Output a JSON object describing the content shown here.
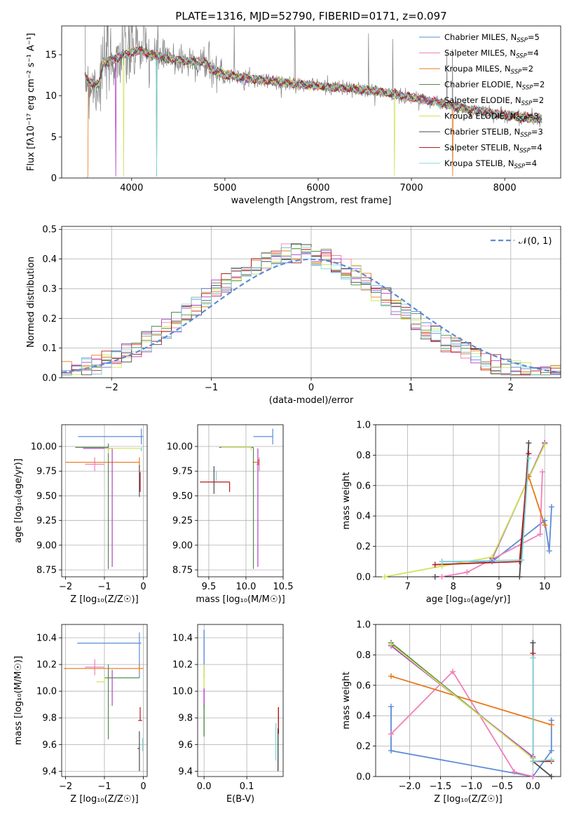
{
  "figure_title": "PLATE=1316, MJD=52790, FIBERID=0171, z=0.097",
  "colors": {
    "chabrier_miles": "#5b8bd8",
    "salpeter_miles": "#ef7fb8",
    "kroupa_miles": "#e7771a",
    "chabrier_elodie": "#548b4c",
    "salpeter_elodie": "#b13fc8",
    "kroupa_elodie": "#cfe35a",
    "chabrier_stelib": "#4a4a4a",
    "salpeter_stelib": "#b51c1c",
    "kroupa_stelib": "#7fd8d9",
    "data": "#808080",
    "normal": "#5b8bd8"
  },
  "chart_data": [
    {
      "id": "spectrum",
      "type": "line",
      "title": "PLATE=1316, MJD=52790, FIBERID=0171, z=0.097",
      "xlabel": "wavelength [Angstrom, rest frame]",
      "ylabel": "Flux [fλ10⁻¹⁷ erg cm⁻² s⁻¹ A⁻¹]",
      "xlim": [
        3250,
        8600
      ],
      "ylim": [
        0,
        18.5
      ],
      "xticks": [
        4000,
        5000,
        6000,
        7000,
        8000
      ],
      "yticks": [
        0,
        5,
        10,
        15
      ],
      "grid": false,
      "legend_position": "top-right",
      "series": [
        {
          "name": "Chabrier MILES, N_SSP=5",
          "color_key": "chabrier_miles"
        },
        {
          "name": "Salpeter MILES, N_SSP=4",
          "color_key": "salpeter_miles"
        },
        {
          "name": "Kroupa MILES, N_SSP=2",
          "color_key": "kroupa_miles"
        },
        {
          "name": "Chabrier ELODIE, N_SSP=2",
          "color_key": "chabrier_elodie"
        },
        {
          "name": "Salpeter ELODIE, N_SSP=2",
          "color_key": "salpeter_elodie"
        },
        {
          "name": "Kroupa ELODIE, N_SSP=3",
          "color_key": "kroupa_elodie"
        },
        {
          "name": "Chabrier STELIB, N_SSP=3",
          "color_key": "chabrier_stelib"
        },
        {
          "name": "Salpeter STELIB, N_SSP=4",
          "color_key": "salpeter_stelib"
        },
        {
          "name": "Kroupa STELIB, N_SSP=4",
          "color_key": "kroupa_stelib"
        }
      ],
      "model_continuum": {
        "x": [
          3500,
          3550,
          3650,
          3700,
          3800,
          3900,
          4000,
          4100,
          4200,
          4300,
          4400,
          4600,
          4800,
          4850,
          5000,
          5200,
          5500,
          5800,
          6000,
          6300,
          6600,
          6900,
          7200,
          7500,
          7800,
          8000,
          8200,
          8400
        ],
        "y": [
          12.3,
          11.6,
          11.3,
          14.0,
          14.3,
          15.0,
          15.2,
          15.6,
          15.0,
          14.8,
          14.5,
          14.2,
          14.0,
          13.2,
          12.6,
          12.2,
          11.8,
          11.4,
          11.2,
          10.9,
          10.6,
          10.0,
          9.4,
          8.6,
          8.0,
          7.6,
          7.4,
          7.2
        ]
      }
    },
    {
      "id": "residuals",
      "type": "step",
      "xlabel": "(data-model)/error",
      "ylabel": "Normed distribution",
      "xlim": [
        -2.5,
        2.5
      ],
      "ylim": [
        0,
        0.51
      ],
      "xticks": [
        -2,
        -1,
        0,
        1,
        2
      ],
      "yticks": [
        0.0,
        0.1,
        0.2,
        0.3,
        0.4,
        0.5
      ],
      "grid": true,
      "legend": "𝒩(0, 1)",
      "legend_position": "top-right",
      "normal_mu": 0,
      "normal_sigma": 1
    },
    {
      "id": "z_age",
      "type": "errorbar",
      "xlabel": "Z [log₁₀(Z/Z☉)]",
      "ylabel": "age  [log₁₀(age/yr)]",
      "xlim": [
        -2.1,
        0.1
      ],
      "ylim": [
        8.68,
        10.22
      ],
      "xticks": [
        -2,
        -1,
        0
      ],
      "yticks": [
        8.75,
        9.0,
        9.25,
        9.5,
        9.75,
        10.0
      ],
      "grid": true,
      "points": [
        {
          "color_key": "chabrier_miles",
          "x": -0.05,
          "xerr": [
            1.63,
            0.05
          ],
          "y": 10.1,
          "yerr": [
            0.08,
            0.08
          ]
        },
        {
          "color_key": "salpeter_miles",
          "x": -1.25,
          "xerr": [
            0.25,
            0.25
          ],
          "y": 9.82,
          "yerr": [
            0.07,
            0.07
          ]
        },
        {
          "color_key": "kroupa_miles",
          "x": -0.1,
          "xerr": [
            1.9,
            0.0
          ],
          "y": 9.84,
          "yerr": [
            0.05,
            0.05
          ]
        },
        {
          "color_key": "chabrier_elodie",
          "x": -0.9,
          "xerr": [
            0.85,
            0.0
          ],
          "y": 9.99,
          "yerr": [
            1.23,
            0.04
          ]
        },
        {
          "color_key": "salpeter_elodie",
          "x": -0.8,
          "xerr": [
            0.75,
            0.0
          ],
          "y": 9.98,
          "yerr": [
            1.2,
            0.0
          ]
        },
        {
          "color_key": "kroupa_elodie",
          "x": -0.9,
          "xerr": [
            0.1,
            0.85
          ],
          "y": 9.98,
          "yerr": [
            0.05,
            0.0
          ]
        },
        {
          "color_key": "chabrier_stelib",
          "x": -0.1,
          "xerr": [
            0.0,
            0.0
          ],
          "y": 9.64,
          "yerr": [
            0.15,
            0.17
          ]
        },
        {
          "color_key": "salpeter_stelib",
          "x": -0.08,
          "xerr": [
            0.0,
            0.0
          ],
          "y": 9.64,
          "yerr": [
            0.1,
            0.1
          ]
        },
        {
          "color_key": "kroupa_stelib",
          "x": -0.05,
          "xerr": [
            0.02,
            0.02
          ],
          "y": 9.97,
          "yerr": [
            0.02,
            0.02
          ]
        }
      ]
    },
    {
      "id": "mass_age",
      "type": "errorbar",
      "xlabel": "mass [log₁₀(M/M☉)]",
      "ylabel": "",
      "xlim": [
        9.35,
        10.5
      ],
      "ylim": [
        8.68,
        10.22
      ],
      "xticks": [
        9.5,
        10.0,
        10.5
      ],
      "yticks": [
        8.75,
        9.0,
        9.25,
        9.5,
        9.75,
        10.0
      ],
      "grid": true,
      "points": [
        {
          "color_key": "chabrier_miles",
          "x": 10.36,
          "xerr": [
            0.26,
            0.0
          ],
          "y": 10.1,
          "yerr": [
            0.08,
            0.08
          ]
        },
        {
          "color_key": "salpeter_miles",
          "x": 10.18,
          "xerr": [
            0.04,
            0.0
          ],
          "y": 9.82,
          "yerr": [
            0.07,
            0.07
          ]
        },
        {
          "color_key": "kroupa_miles",
          "x": 10.17,
          "xerr": [
            0.08,
            0.0
          ],
          "y": 9.84,
          "yerr": [
            0.03,
            0.03
          ]
        },
        {
          "color_key": "chabrier_elodie",
          "x": 10.1,
          "xerr": [
            0.46,
            0.0
          ],
          "y": 9.99,
          "yerr": [
            1.23,
            0.0
          ]
        },
        {
          "color_key": "salpeter_elodie",
          "x": 10.16,
          "xerr": [
            0.0,
            0.0
          ],
          "y": 9.98,
          "yerr": [
            1.2,
            0.0
          ]
        },
        {
          "color_key": "kroupa_elodie",
          "x": 10.07,
          "xerr": [
            0.4,
            0.0
          ],
          "y": 9.99,
          "yerr": [
            0.03,
            0.0
          ]
        },
        {
          "color_key": "chabrier_stelib",
          "x": 9.57,
          "xerr": [
            0.0,
            0.0
          ],
          "y": 9.64,
          "yerr": [
            0.12,
            0.16
          ]
        },
        {
          "color_key": "salpeter_stelib",
          "x": 9.78,
          "xerr": [
            0.4,
            0.0
          ],
          "y": 9.64,
          "yerr": [
            0.1,
            0.0
          ]
        },
        {
          "color_key": "kroupa_stelib",
          "x": 9.6,
          "xerr": [
            0.0,
            0.0
          ],
          "y": 9.7,
          "yerr": [
            0.05,
            0.05
          ]
        }
      ]
    },
    {
      "id": "weight_age",
      "type": "line",
      "xlabel": "age  [log₁₀(age/yr)]",
      "ylabel": "mass weight",
      "xlim": [
        6.3,
        10.35
      ],
      "ylim": [
        0,
        1.0
      ],
      "xticks": [
        7,
        8,
        9,
        10
      ],
      "yticks": [
        0.0,
        0.2,
        0.4,
        0.6,
        0.8,
        1.0
      ],
      "grid": true,
      "series": [
        {
          "color_key": "chabrier_miles",
          "x": [
            7.75,
            8.85,
            10.0,
            10.1,
            10.15
          ],
          "y": [
            0.1,
            0.1,
            0.37,
            0.17,
            0.46
          ]
        },
        {
          "color_key": "salpeter_miles",
          "x": [
            7.75,
            8.3,
            9.9,
            9.95
          ],
          "y": [
            0.0,
            0.03,
            0.28,
            0.69
          ]
        },
        {
          "color_key": "kroupa_miles",
          "x": [
            9.65,
            10.0
          ],
          "y": [
            0.66,
            0.34
          ]
        },
        {
          "color_key": "chabrier_elodie",
          "x": [
            8.85,
            10.0
          ],
          "y": [
            0.12,
            0.88
          ]
        },
        {
          "color_key": "salpeter_elodie",
          "x": [
            8.85,
            10.0
          ],
          "y": [
            0.12,
            0.88
          ]
        },
        {
          "color_key": "kroupa_elodie",
          "x": [
            6.5,
            7.75,
            8.85,
            10.0
          ],
          "y": [
            0.0,
            0.07,
            0.13,
            0.87
          ]
        },
        {
          "color_key": "chabrier_stelib",
          "x": [
            7.6,
            9.45,
            9.65
          ],
          "y": [
            0.0,
            0.0,
            0.88
          ]
        },
        {
          "color_key": "salpeter_stelib",
          "x": [
            7.6,
            9.45,
            9.65
          ],
          "y": [
            0.08,
            0.1,
            0.81
          ]
        },
        {
          "color_key": "kroupa_stelib",
          "x": [
            7.75,
            9.5,
            9.65
          ],
          "y": [
            0.1,
            0.11,
            0.78
          ]
        }
      ]
    },
    {
      "id": "z_mass",
      "type": "errorbar",
      "xlabel": "Z [log₁₀(Z/Z☉)]",
      "ylabel": "mass [log₁₀(M/M☉)]",
      "xlim": [
        -2.1,
        0.1
      ],
      "ylim": [
        9.36,
        10.5
      ],
      "xticks": [
        -2,
        -1,
        0
      ],
      "yticks": [
        9.4,
        9.6,
        9.8,
        10.0,
        10.2,
        10.4
      ],
      "grid": true,
      "points": [
        {
          "color_key": "chabrier_miles",
          "x": -0.1,
          "xerr": [
            1.6,
            0.05
          ],
          "y": 10.36,
          "yerr": [
            0.26,
            0.08
          ]
        },
        {
          "color_key": "salpeter_miles",
          "x": -1.25,
          "xerr": [
            0.25,
            0.25
          ],
          "y": 10.18,
          "yerr": [
            0.06,
            0.06
          ]
        },
        {
          "color_key": "kroupa_miles",
          "x": -0.1,
          "xerr": [
            1.95,
            0.1
          ],
          "y": 10.17,
          "yerr": [
            0.03,
            0.03
          ]
        },
        {
          "color_key": "chabrier_elodie",
          "x": -0.9,
          "xerr": [
            0.1,
            0.8
          ],
          "y": 10.1,
          "yerr": [
            0.46,
            0.1
          ]
        },
        {
          "color_key": "salpeter_elodie",
          "x": -0.8,
          "xerr": [
            0.0,
            0.0
          ],
          "y": 10.16,
          "yerr": [
            0.27,
            0.0
          ]
        },
        {
          "color_key": "kroupa_elodie",
          "x": -1.0,
          "xerr": [
            0.2,
            0.0
          ],
          "y": 10.07,
          "yerr": [
            0.0,
            0.04
          ]
        },
        {
          "color_key": "chabrier_stelib",
          "x": -0.1,
          "xerr": [
            0.05,
            0.0
          ],
          "y": 9.57,
          "yerr": [
            0.17,
            0.13
          ]
        },
        {
          "color_key": "salpeter_stelib",
          "x": -0.08,
          "xerr": [
            0.05,
            0.05
          ],
          "y": 9.78,
          "yerr": [
            0.0,
            0.1
          ]
        },
        {
          "color_key": "kroupa_stelib",
          "x": -0.02,
          "xerr": [
            0.02,
            0.02
          ],
          "y": 9.6,
          "yerr": [
            0.05,
            0.05
          ]
        }
      ]
    },
    {
      "id": "ebv_mass",
      "type": "errorbar",
      "xlabel": "E(B-V)",
      "ylabel": "",
      "xlim": [
        -0.015,
        0.185
      ],
      "ylim": [
        9.36,
        10.5
      ],
      "xticks": [
        0.0,
        0.1
      ],
      "yticks": [
        9.4,
        9.6,
        9.8,
        10.0,
        10.2,
        10.4
      ],
      "grid": true,
      "points": [
        {
          "color_key": "chabrier_miles",
          "x": 0.0,
          "yerr_range": [
            10.1,
            10.46
          ]
        },
        {
          "color_key": "kroupa_elodie",
          "x": 0.0,
          "yerr_range": [
            10.02,
            10.2
          ]
        },
        {
          "color_key": "salpeter_elodie",
          "x": 0.0,
          "yerr_range": [
            9.88,
            10.02
          ]
        },
        {
          "color_key": "chabrier_elodie",
          "x": 0.0,
          "yerr_range": [
            9.66,
            9.9
          ]
        },
        {
          "color_key": "kroupa_stelib",
          "x": 0.168,
          "yerr_range": [
            9.48,
            9.76
          ]
        },
        {
          "color_key": "chabrier_stelib",
          "x": 0.173,
          "yerr_range": [
            9.4,
            9.72
          ]
        },
        {
          "color_key": "salpeter_stelib",
          "x": 0.174,
          "yerr_range": [
            9.68,
            9.88
          ]
        }
      ]
    },
    {
      "id": "weight_z",
      "type": "line",
      "xlabel": "Z [log₁₀(Z/Z☉)]",
      "ylabel": "mass weight",
      "xlim": [
        -2.55,
        0.45
      ],
      "ylim": [
        0,
        1.0
      ],
      "xticks": [
        -2.0,
        -1.5,
        -1.0,
        -0.5,
        0.0
      ],
      "yticks": [
        0.0,
        0.2,
        0.4,
        0.6,
        0.8,
        1.0
      ],
      "grid": true,
      "series": [
        {
          "color_key": "chabrier_miles",
          "x": [
            -2.3,
            -2.3,
            0.0,
            0.3,
            0.3
          ],
          "y": [
            0.46,
            0.17,
            0.0,
            0.17,
            0.37
          ]
        },
        {
          "color_key": "salpeter_miles",
          "x": [
            -2.3,
            -1.3,
            -0.3,
            0.0
          ],
          "y": [
            0.28,
            0.69,
            0.03,
            0.0
          ]
        },
        {
          "color_key": "kroupa_miles",
          "x": [
            -2.3,
            0.3
          ],
          "y": [
            0.66,
            0.34
          ]
        },
        {
          "color_key": "chabrier_elodie",
          "x": [
            -2.3,
            0.0
          ],
          "y": [
            0.88,
            0.12
          ]
        },
        {
          "color_key": "salpeter_elodie",
          "x": [
            -2.3,
            0.0
          ],
          "y": [
            0.86,
            0.13
          ]
        },
        {
          "color_key": "kroupa_elodie",
          "x": [
            -2.3,
            0.0
          ],
          "y": [
            0.87,
            0.12
          ]
        },
        {
          "color_key": "chabrier_stelib",
          "x": [
            0.0,
            0.0,
            0.3
          ],
          "y": [
            0.88,
            0.1,
            0.0
          ]
        },
        {
          "color_key": "salpeter_stelib",
          "x": [
            0.0,
            0.0,
            0.3
          ],
          "y": [
            0.81,
            0.1,
            0.1
          ]
        },
        {
          "color_key": "kroupa_stelib",
          "x": [
            0.0,
            0.0,
            0.3
          ],
          "y": [
            0.78,
            0.1,
            0.11
          ]
        }
      ]
    }
  ]
}
